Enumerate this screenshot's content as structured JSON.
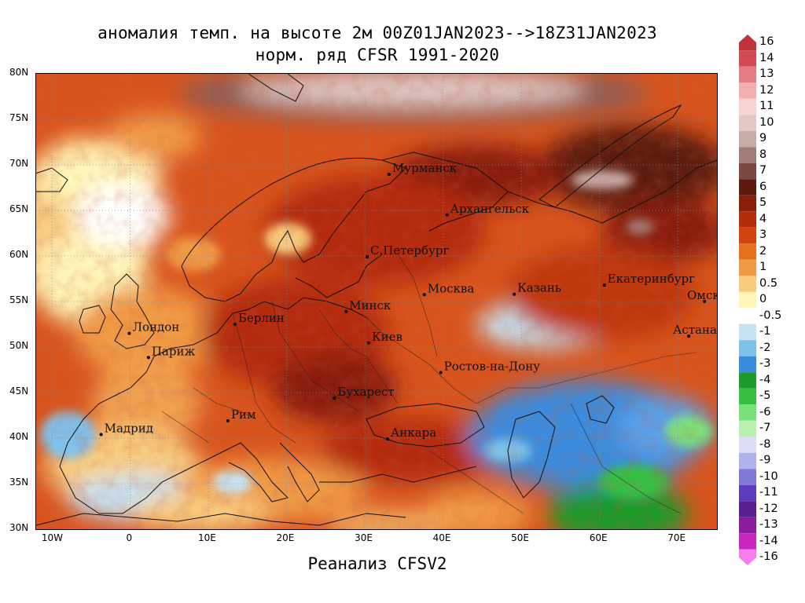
{
  "title_line1": "аномалия темп. на высоте 2м 00Z01JAN2023-->18Z31JAN2023",
  "title_line2": "норм. ряд CFSR 1991-2020",
  "footer": "Реанализ CFSV2",
  "map": {
    "lon_range": [
      -12,
      75
    ],
    "lat_range": [
      30,
      80
    ],
    "lat_ticks": [
      "30N",
      "35N",
      "40N",
      "45N",
      "50N",
      "55N",
      "60N",
      "65N",
      "70N",
      "75N",
      "80N"
    ],
    "lon_ticks": [
      "10W",
      "0",
      "10E",
      "20E",
      "30E",
      "40E",
      "50E",
      "60E",
      "70E"
    ],
    "cities": [
      {
        "name": "Мурманск",
        "lon": 33.1,
        "lat": 68.97
      },
      {
        "name": "Архангельск",
        "lon": 40.5,
        "lat": 64.5
      },
      {
        "name": "С.Петербург",
        "lon": 30.3,
        "lat": 59.9
      },
      {
        "name": "Москва",
        "lon": 37.6,
        "lat": 55.75
      },
      {
        "name": "Казань",
        "lon": 49.1,
        "lat": 55.8
      },
      {
        "name": "Екатеринбург",
        "lon": 60.6,
        "lat": 56.8
      },
      {
        "name": "Минск",
        "lon": 27.6,
        "lat": 53.9
      },
      {
        "name": "Берлин",
        "lon": 13.4,
        "lat": 52.5
      },
      {
        "name": "Лондон",
        "lon": -0.1,
        "lat": 51.5
      },
      {
        "name": "Париж",
        "lon": 2.35,
        "lat": 48.85
      },
      {
        "name": "Киев",
        "lon": 30.5,
        "lat": 50.45
      },
      {
        "name": "Омск",
        "lon": 73.4,
        "lat": 55.0
      },
      {
        "name": "Астана",
        "lon": 71.4,
        "lat": 51.2
      },
      {
        "name": "Ростов-на-Дону",
        "lon": 39.7,
        "lat": 47.2
      },
      {
        "name": "Бухарест",
        "lon": 26.1,
        "lat": 44.4
      },
      {
        "name": "Рим",
        "lon": 12.5,
        "lat": 41.9
      },
      {
        "name": "Мадрид",
        "lon": -3.7,
        "lat": 40.4
      },
      {
        "name": "Анкара",
        "lon": 32.9,
        "lat": 39.9
      }
    ]
  },
  "legend": {
    "labels": [
      "16",
      "14",
      "13",
      "12",
      "11",
      "10",
      "9",
      "8",
      "7",
      "6",
      "5",
      "4",
      "3",
      "2",
      "1",
      "0.5",
      "0",
      "-0.5",
      "-1",
      "-2",
      "-3",
      "-4",
      "-5",
      "-6",
      "-7",
      "-8",
      "-9",
      "-10",
      "-11",
      "-12",
      "-13",
      "-14",
      "-16"
    ],
    "colors": [
      "#c0343c",
      "#d24a54",
      "#e47c84",
      "#f2aeb0",
      "#f6d2d0",
      "#e2c8c4",
      "#c8aca8",
      "#a27c76",
      "#7a4a42",
      "#5c1a0e",
      "#8a1e08",
      "#b42c08",
      "#d4440e",
      "#e4701e",
      "#f09a44",
      "#f8cc7e",
      "#fff6b8",
      "#ffffff",
      "#c4e4f4",
      "#7ec2ec",
      "#3a8cde",
      "#1c9a2c",
      "#36c042",
      "#7ce07a",
      "#b8f0b2",
      "#dcdcf4",
      "#b0b2ec",
      "#8278d8",
      "#5e3cc0",
      "#5a1e8e",
      "#8e1c9a",
      "#c826c0",
      "#f27ee8"
    ]
  }
}
